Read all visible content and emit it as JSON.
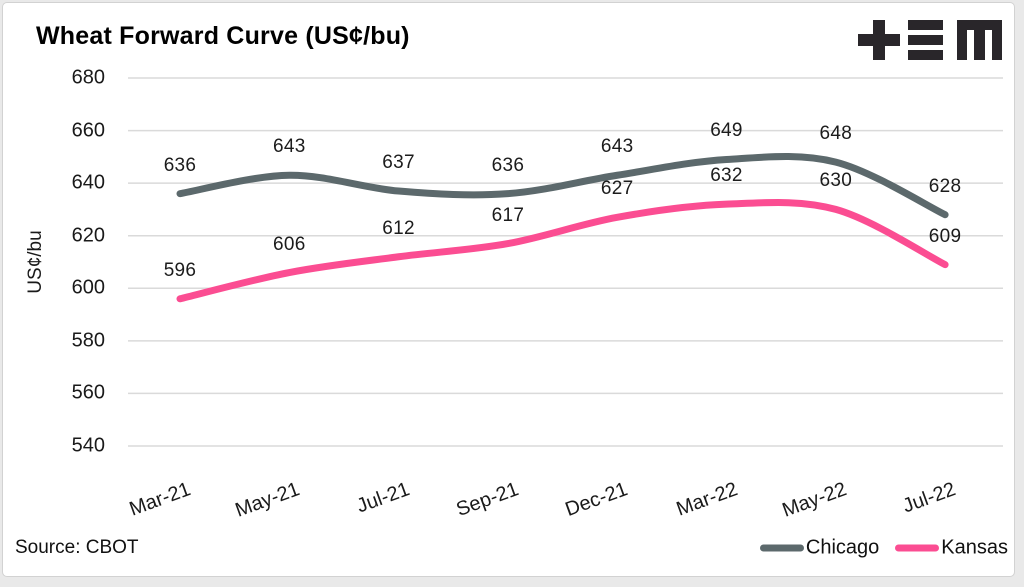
{
  "header": {
    "title": "Wheat Forward Curve (US¢/bu)"
  },
  "chart_data": {
    "type": "line",
    "title": "Wheat Forward Curve (US¢/bu)",
    "categories": [
      "Mar-21",
      "May-21",
      "Jul-21",
      "Sep-21",
      "Dec-21",
      "Mar-22",
      "May-22",
      "Jul-22"
    ],
    "series": [
      {
        "name": "Chicago",
        "color": "#5c696c",
        "values": [
          636,
          643,
          637,
          636,
          643,
          649,
          648,
          628
        ]
      },
      {
        "name": "Kansas",
        "color": "#fb4d92",
        "values": [
          596,
          606,
          612,
          617,
          627,
          632,
          630,
          609
        ]
      }
    ],
    "ylabel": "US¢/bu",
    "yticks": [
      540,
      560,
      580,
      600,
      620,
      640,
      660,
      680
    ],
    "ylim": [
      540,
      680
    ],
    "grid": "horizontal",
    "legend_position": "bottom-right",
    "data_labels": true,
    "line_style": "smooth"
  },
  "footer": {
    "source": "Source: CBOT"
  },
  "colors": {
    "gridline": "#dadada",
    "text": "#1a1a1a",
    "background": "#ffffff",
    "border": "#d2d2d2",
    "logo": "#29262a"
  }
}
